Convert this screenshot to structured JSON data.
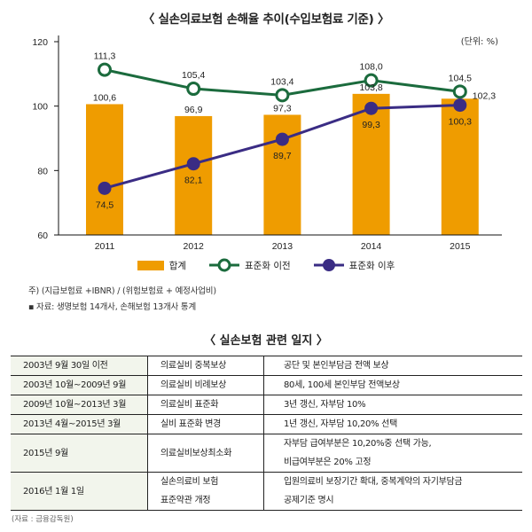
{
  "chart_title": "〈 실손의료보험 손해율 추이(수입보험료 기준) 〉",
  "unit_label": "(단위: %)",
  "chart_data": {
    "type": "bar",
    "title": "〈 실손의료보험 손해율 추이(수입보험료 기준) 〉",
    "xlabel": "",
    "ylabel": "",
    "unit": "%",
    "categories": [
      "2011",
      "2012",
      "2013",
      "2014",
      "2015"
    ],
    "ylim": [
      60,
      120
    ],
    "yticks": [
      60,
      80,
      100,
      120
    ],
    "grid": false,
    "legend_position": "bottom",
    "series": [
      {
        "name": "합계",
        "type": "bar",
        "color": "#ef9c00",
        "values": [
          100.6,
          96.9,
          97.3,
          103.8,
          102.3
        ],
        "labels": [
          "100,6",
          "96,9",
          "97,3",
          "103,8",
          "102,3"
        ]
      },
      {
        "name": "표준화 이전",
        "type": "line",
        "marker": "open-circle",
        "color": "#1b6b3d",
        "values": [
          111.3,
          105.4,
          103.4,
          108.0,
          104.5
        ],
        "labels": [
          "111,3",
          "105,4",
          "103,4",
          "108,0",
          "104,5"
        ]
      },
      {
        "name": "표준화 이후",
        "type": "line",
        "marker": "filled-circle",
        "color": "#3a2c84",
        "values": [
          74.5,
          82.1,
          89.7,
          99.3,
          100.3
        ],
        "labels": [
          "74,5",
          "82,1",
          "89,7",
          "99,3",
          "100,3"
        ]
      }
    ]
  },
  "notes": {
    "formula": "주) (지급보험료 +IBNR) / (위험보험료 + 예정사업비)",
    "source": "▪ 자료: 생명보험 14개사, 손해보험 13개사 통계"
  },
  "timeline": {
    "title": "〈 실손보험 관련 일지 〉",
    "rows": [
      {
        "period": "2003년 9월 30일 이전",
        "name": [
          "의료실비 중복보상"
        ],
        "detail": [
          "공단 및 본인부담금 전액 보상"
        ]
      },
      {
        "period": "2003년 10월~2009년 9월",
        "name": [
          "의료실비 비례보상"
        ],
        "detail": [
          "80세, 100세 본인부담 전액보상"
        ]
      },
      {
        "period": "2009년 10월~2013년 3월",
        "name": [
          "의료실비 표준화"
        ],
        "detail": [
          "3년 갱신, 자부담 10%"
        ]
      },
      {
        "period": "2013년 4월~2015년 3월",
        "name": [
          "실비 표준화 변경"
        ],
        "detail": [
          "1년 갱신, 자부담 10,20% 선택"
        ]
      },
      {
        "period": "2015년 9월",
        "name": [
          "의료실비보상최소화"
        ],
        "detail": [
          "자부담 급여부분은 10,20%중 선택 가능,",
          "비급여부분은 20% 고정"
        ]
      },
      {
        "period": "2016년 1월 1일",
        "name": [
          "실손의료비 보험",
          "표준약관 개정"
        ],
        "detail": [
          "입원의료비 보장기간 확대, 중복계약의 자기부담금",
          "공제기준 명시"
        ]
      }
    ],
    "source": "(자료 : 금융감독원)"
  }
}
